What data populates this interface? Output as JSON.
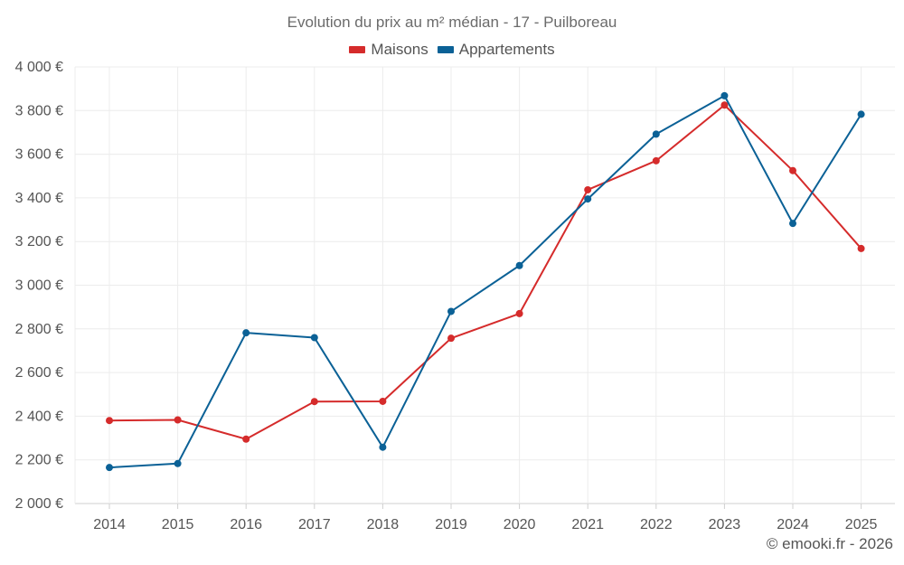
{
  "chart_data": {
    "type": "line",
    "title": "Evolution du prix au m² médian - 17 - Puilboreau",
    "categories": [
      "2014",
      "2015",
      "2016",
      "2017",
      "2018",
      "2019",
      "2020",
      "2021",
      "2022",
      "2023",
      "2024",
      "2025"
    ],
    "series": [
      {
        "name": "Maisons",
        "color": "#d52b2b",
        "values": [
          2380,
          2383,
          2295,
          2467,
          2468,
          2757,
          2870,
          3437,
          3570,
          3825,
          3525,
          3168
        ]
      },
      {
        "name": "Appartements",
        "color": "#0b6196",
        "values": [
          2165,
          2183,
          2782,
          2760,
          2258,
          2880,
          3090,
          3395,
          3692,
          3868,
          3283,
          3783
        ]
      }
    ],
    "ylim": [
      2000,
      4000
    ],
    "yticks": [
      2000,
      2200,
      2400,
      2600,
      2800,
      3000,
      3200,
      3400,
      3600,
      3800,
      4000
    ],
    "ytick_labels": [
      "2 000 €",
      "2 200 €",
      "2 400 €",
      "2 600 €",
      "2 800 €",
      "3 000 €",
      "3 200 €",
      "3 400 €",
      "3 600 €",
      "3 800 €",
      "4 000 €"
    ],
    "xlabel": "",
    "ylabel": "",
    "grid": true,
    "legend_position": "top-center"
  },
  "copyright": "© emooki.fr - 2026"
}
